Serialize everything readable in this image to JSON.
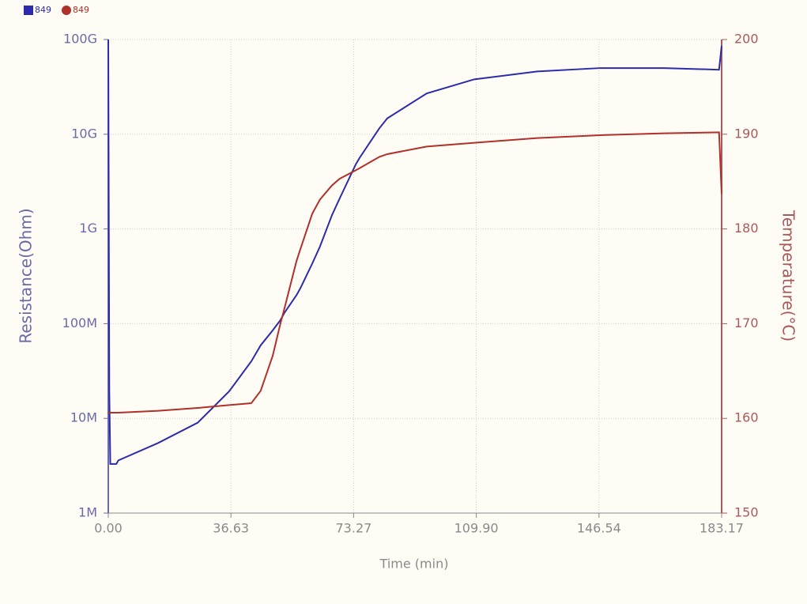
{
  "chart_data": {
    "type": "line",
    "x_label": "Time (min)",
    "y_label": "Resistance(Ohm)",
    "y2_label": "Temperature(°C)",
    "x": [
      0,
      0.3,
      0.6,
      2.4,
      3.0,
      14.9,
      26.7,
      36.1,
      42.7,
      45.5,
      49.1,
      51.4,
      52.6,
      56.2,
      57.3,
      60.9,
      63.2,
      66.8,
      69.1,
      73.9,
      75.0,
      80.9,
      83.3,
      95.1,
      109.3,
      128.1,
      147.0,
      165.9,
      182.4,
      183.17
    ],
    "series": [
      {
        "name": "849",
        "color": "#2b2bab",
        "marker": "square",
        "axis": "y",
        "values": [
          100000000000,
          20000000,
          3300000,
          3300000,
          3600000,
          5500000,
          9000000,
          19300000,
          40000000,
          59000000,
          85000000,
          109000000,
          130000000,
          200000000,
          234000000,
          430000000,
          650000000,
          1400000000,
          2100000000,
          4800000000,
          5600000000,
          11500000000,
          14700000000,
          27000000000,
          38000000000,
          46000000000,
          50000000000,
          50000000000,
          48000000000,
          86000000000
        ]
      },
      {
        "name": "849",
        "color": "#b0302a",
        "marker": "circle",
        "axis": "y2",
        "values": [
          160.5,
          160.6,
          160.6,
          160.6,
          160.6,
          160.8,
          161.1,
          161.4,
          161.6,
          162.9,
          166.6,
          170,
          171.6,
          176.6,
          177.8,
          181.6,
          183.1,
          184.6,
          185.3,
          186.2,
          186.4,
          187.6,
          187.9,
          188.7,
          189.1,
          189.6,
          189.9,
          190.1,
          190.2,
          183.7
        ]
      }
    ],
    "xlim": [
      0,
      183.17
    ],
    "xticks": [
      {
        "value": 0,
        "label": "0.00"
      },
      36.63,
      73.27,
      {
        "value": 109.9,
        "label": "109.90"
      },
      146.54,
      183.17
    ],
    "ylog": true,
    "ylim": [
      1000000,
      100000000000
    ],
    "yticks": [
      {
        "value": 1000000,
        "label": "1M"
      },
      {
        "value": 10000000,
        "label": "10M"
      },
      {
        "value": 100000000,
        "label": "100M"
      },
      {
        "value": 1000000000,
        "label": "1G"
      },
      {
        "value": 10000000000,
        "label": "10G"
      },
      {
        "value": 100000000000,
        "label": "100G"
      }
    ],
    "y2lim": [
      150,
      200
    ],
    "y2ticks": [
      150,
      160,
      170,
      180,
      190,
      200
    ],
    "grid": true,
    "legend": "top-left"
  }
}
